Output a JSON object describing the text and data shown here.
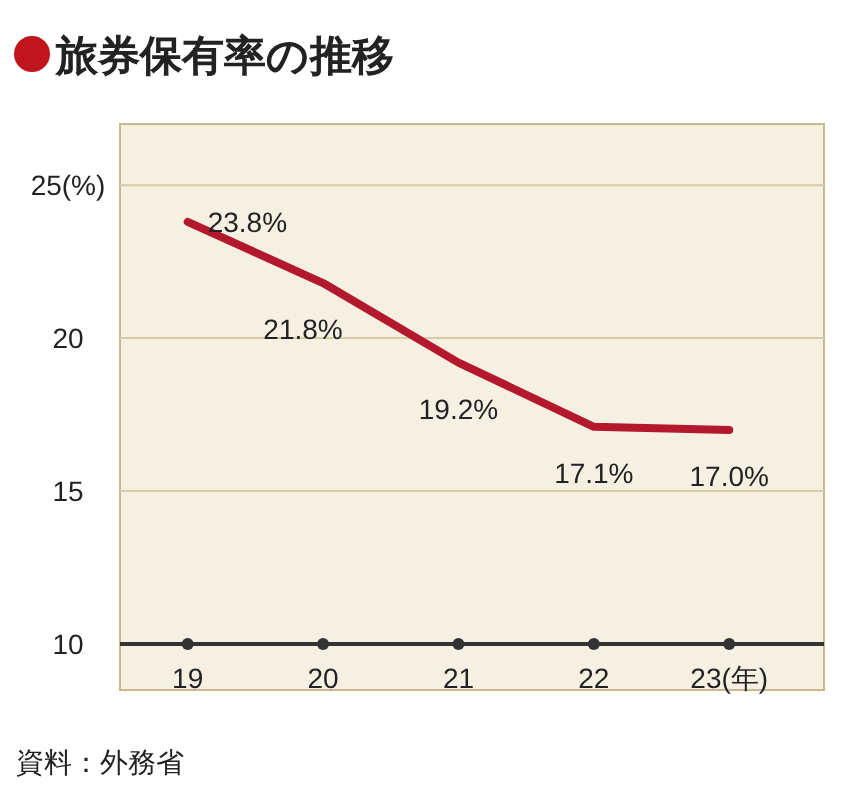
{
  "chart_data": {
    "type": "line",
    "title": "旅券保有率の推移",
    "x": [
      19,
      20,
      21,
      22,
      23
    ],
    "series": [
      {
        "color": "#b3182c",
        "values": [
          23.8,
          21.8,
          19.2,
          17.1,
          17.0
        ],
        "value_labels": [
          "23.8%",
          "21.8%",
          "19.2%",
          "17.1%",
          "17.0%"
        ]
      }
    ],
    "xlim": [
      18.5,
      23.7
    ],
    "xticks": [
      19,
      20,
      21,
      22,
      {
        "value": 23,
        "label": "23(年)"
      }
    ],
    "ylim": [
      10,
      27
    ],
    "yticks": [
      10,
      15,
      20,
      {
        "value": 25,
        "label": "25(%)"
      }
    ],
    "grid": "y",
    "marker": "none",
    "line_style": "solid",
    "annotations": [
      "資料：外務省"
    ]
  }
}
